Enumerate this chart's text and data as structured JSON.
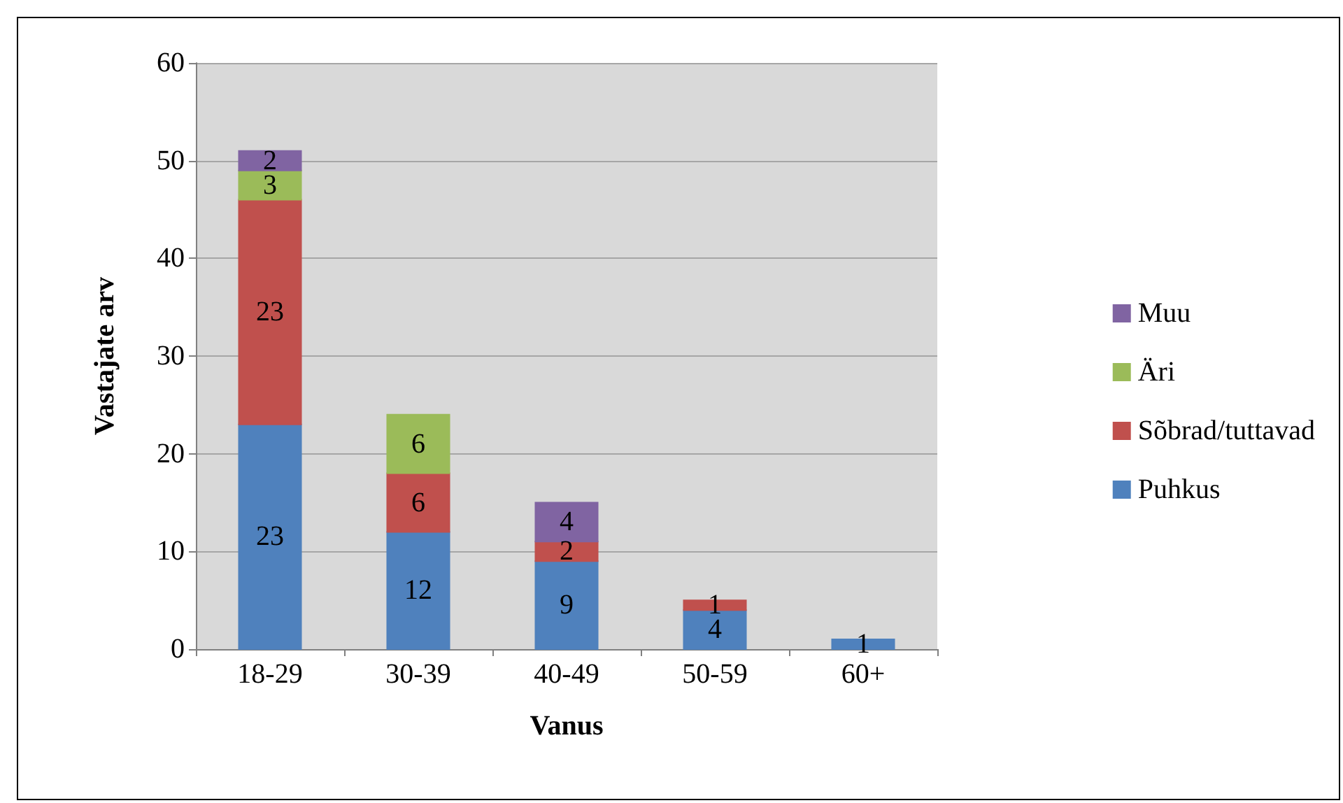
{
  "chart_data": {
    "type": "bar",
    "stacked": true,
    "xlabel": "Vanus",
    "ylabel": "Vastajate arv",
    "categories": [
      "18-29",
      "30-39",
      "40-49",
      "50-59",
      "60+"
    ],
    "series": [
      {
        "name": "Puhkus",
        "color": "#4f81bd",
        "values": [
          23,
          12,
          9,
          4,
          1
        ]
      },
      {
        "name": "Sõbrad/tuttavad",
        "color": "#c0504d",
        "values": [
          23,
          6,
          2,
          1,
          null
        ]
      },
      {
        "name": "Äri",
        "color": "#9bbb59",
        "values": [
          3,
          6,
          null,
          null,
          null
        ]
      },
      {
        "name": "Muu",
        "color": "#8064a2",
        "values": [
          2,
          null,
          4,
          null,
          null
        ]
      }
    ],
    "ylim": [
      0,
      60
    ],
    "yticks": [
      0,
      10,
      20,
      30,
      40,
      50,
      60
    ],
    "grid": "y",
    "legend": "right",
    "data_labels": true
  }
}
